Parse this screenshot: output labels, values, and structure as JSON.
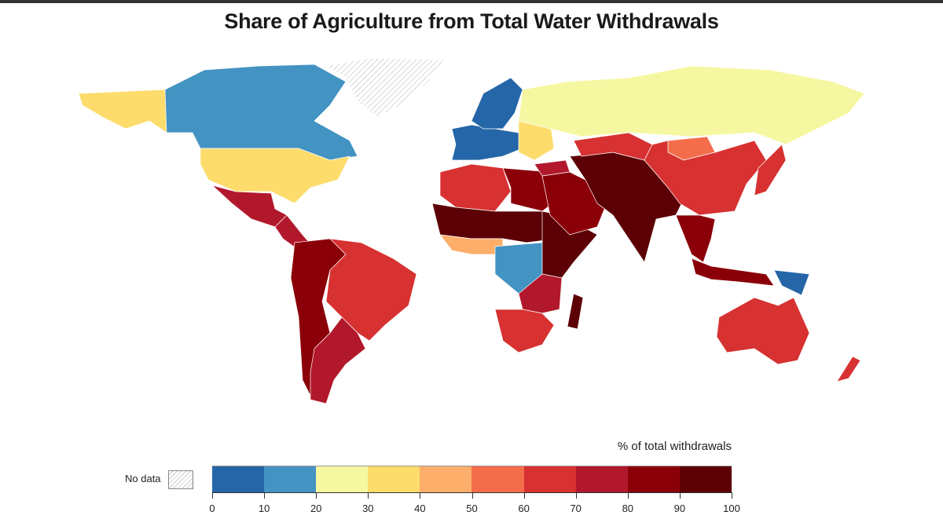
{
  "title": "Share of Agriculture from Total Water Withdrawals",
  "legend": {
    "title": "% of total withdrawals",
    "no_data_label": "No data",
    "no_data_pattern": "hatched",
    "bins": [
      {
        "min": 0,
        "max": 10,
        "color": "#2566a8"
      },
      {
        "min": 10,
        "max": 20,
        "color": "#4393c3"
      },
      {
        "min": 20,
        "max": 30,
        "color": "#f6f7a1"
      },
      {
        "min": 30,
        "max": 40,
        "color": "#fddc6c"
      },
      {
        "min": 40,
        "max": 50,
        "color": "#fdae6b"
      },
      {
        "min": 50,
        "max": 60,
        "color": "#f46d4b"
      },
      {
        "min": 60,
        "max": 70,
        "color": "#d73131"
      },
      {
        "min": 70,
        "max": 80,
        "color": "#b2182b"
      },
      {
        "min": 80,
        "max": 90,
        "color": "#8b0008"
      },
      {
        "min": 90,
        "max": 100,
        "color": "#5c0005"
      }
    ],
    "ticks": [
      "0",
      "10",
      "20",
      "30",
      "40",
      "50",
      "60",
      "70",
      "80",
      "90",
      "100"
    ]
  },
  "regions": [
    {
      "name": "Alaska",
      "bin": 3
    },
    {
      "name": "Canada",
      "bin": 1
    },
    {
      "name": "Greenland",
      "bin": null
    },
    {
      "name": "United States",
      "bin": 3
    },
    {
      "name": "Mexico",
      "bin": 7
    },
    {
      "name": "Central America",
      "bin": 7
    },
    {
      "name": "Andean South America",
      "bin": 8
    },
    {
      "name": "Brazil",
      "bin": 6
    },
    {
      "name": "Argentina",
      "bin": 7
    },
    {
      "name": "Western Europe",
      "bin": 0
    },
    {
      "name": "Scandinavia",
      "bin": 0
    },
    {
      "name": "Eastern Europe",
      "bin": 3
    },
    {
      "name": "Russia",
      "bin": 2
    },
    {
      "name": "North Africa",
      "bin": 6
    },
    {
      "name": "Egypt and Libya",
      "bin": 8
    },
    {
      "name": "Sahel",
      "bin": 9
    },
    {
      "name": "West Africa",
      "bin": 4
    },
    {
      "name": "Central Africa",
      "bin": 1
    },
    {
      "name": "East Africa",
      "bin": 9
    },
    {
      "name": "Southeast Africa",
      "bin": 7
    },
    {
      "name": "Southern Africa",
      "bin": 6
    },
    {
      "name": "Madagascar",
      "bin": 9
    },
    {
      "name": "Middle East",
      "bin": 8
    },
    {
      "name": "Turkey",
      "bin": 7
    },
    {
      "name": "South and Central Asia",
      "bin": 9
    },
    {
      "name": "Kazakhstan",
      "bin": 6
    },
    {
      "name": "Mongolia",
      "bin": 5
    },
    {
      "name": "China",
      "bin": 6
    },
    {
      "name": "Japan",
      "bin": 6
    },
    {
      "name": "Southeast Asia",
      "bin": 8
    },
    {
      "name": "Indonesia",
      "bin": 8
    },
    {
      "name": "Papua New Guinea",
      "bin": 0
    },
    {
      "name": "Australia",
      "bin": 6
    },
    {
      "name": "New Zealand",
      "bin": 6
    }
  ]
}
